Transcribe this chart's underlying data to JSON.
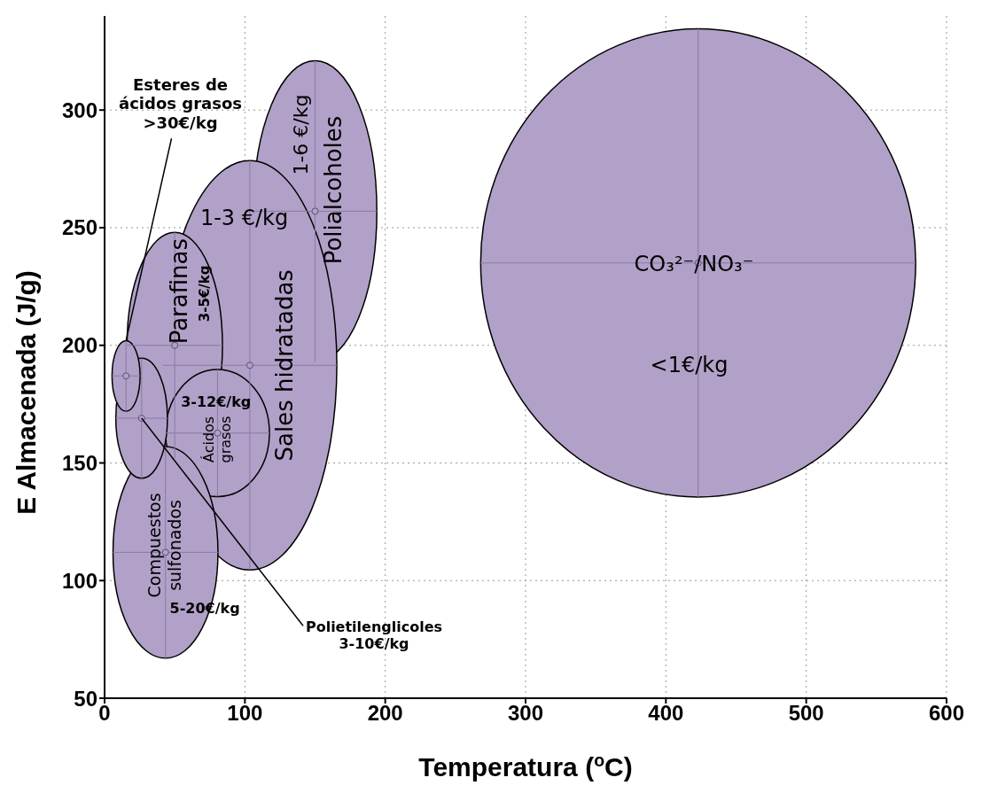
{
  "chart_data": {
    "type": "scatter",
    "xlabel": "Temperatura ($^{o}$C)",
    "ylabel": "E Almacenada (J/g)",
    "x": [
      423,
      150,
      103.5,
      50,
      80.5,
      43.4,
      26.4,
      15.3
    ],
    "series": [
      {
        "color": "#b1a1c8",
        "values": [
          235,
          257,
          191.5,
          200,
          162.7,
          112,
          169,
          187
        ],
        "xerrors": [
          155,
          44,
          62,
          34,
          37,
          37.4,
          18.4,
          10
        ],
        "errors": [
          99.5,
          64,
          87,
          48,
          27,
          45,
          25.5,
          15
        ]
      }
    ],
    "xlim": [
      0,
      600
    ],
    "xticks": [
      0,
      100,
      200,
      300,
      400,
      500,
      600
    ],
    "ylim": [
      50,
      340
    ],
    "yticks": [
      50,
      100,
      150,
      200,
      250,
      300
    ],
    "grid": true,
    "annotations": [
      "CO₃²⁻/NO₃⁻",
      "<1€/kg",
      "1-3 €/kg",
      "1-6 €/kg",
      "Polialcoholes",
      "Sales hidratadas",
      "Parafinas",
      "3-5€/kg",
      "3-12€/kg",
      "Ácidos\ngrasos",
      "Compuestos\nsulfonados",
      "5-20€/kg",
      {
        "text": "Esteres de\nácidos grasos\n>30€/kg",
        "x": 15.3,
        "y": 202
      },
      {
        "text": "Polietilenglicoles\n3-10€/kg",
        "x": 26.4,
        "y": 169
      }
    ]
  }
}
